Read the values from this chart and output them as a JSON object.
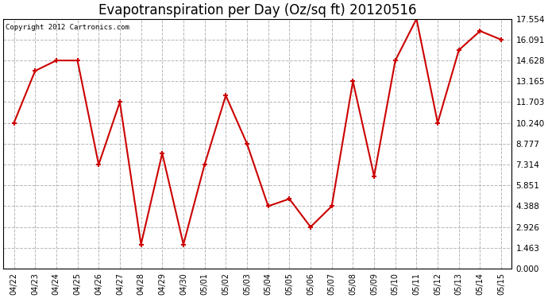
{
  "title": "Evapotranspiration per Day (Oz/sq ft) 20120516",
  "copyright_text": "Copyright 2012 Cartronics.com",
  "dates": [
    "04/22",
    "04/23",
    "04/24",
    "04/25",
    "04/26",
    "04/27",
    "04/28",
    "04/29",
    "04/30",
    "05/01",
    "05/02",
    "05/03",
    "05/04",
    "05/05",
    "05/06",
    "05/07",
    "05/08",
    "05/09",
    "05/10",
    "05/11",
    "05/12",
    "05/13",
    "05/14",
    "05/15"
  ],
  "values": [
    10.24,
    13.897,
    14.628,
    14.628,
    7.314,
    11.703,
    1.7,
    8.1,
    1.7,
    7.314,
    12.166,
    8.777,
    4.388,
    4.9,
    2.926,
    4.388,
    13.165,
    6.5,
    14.628,
    17.554,
    10.24,
    15.36,
    16.7,
    16.091
  ],
  "y_ticks": [
    0.0,
    1.463,
    2.926,
    4.388,
    5.851,
    7.314,
    8.777,
    10.24,
    11.703,
    13.165,
    14.628,
    16.091,
    17.554
  ],
  "line_color": "#cc0000",
  "marker_color": "#cc0000",
  "bg_color": "#ffffff",
  "grid_color": "#aaaaaa",
  "title_fontsize": 12,
  "copyright_fontsize": 6.5,
  "ylim": [
    0.0,
    17.554
  ]
}
